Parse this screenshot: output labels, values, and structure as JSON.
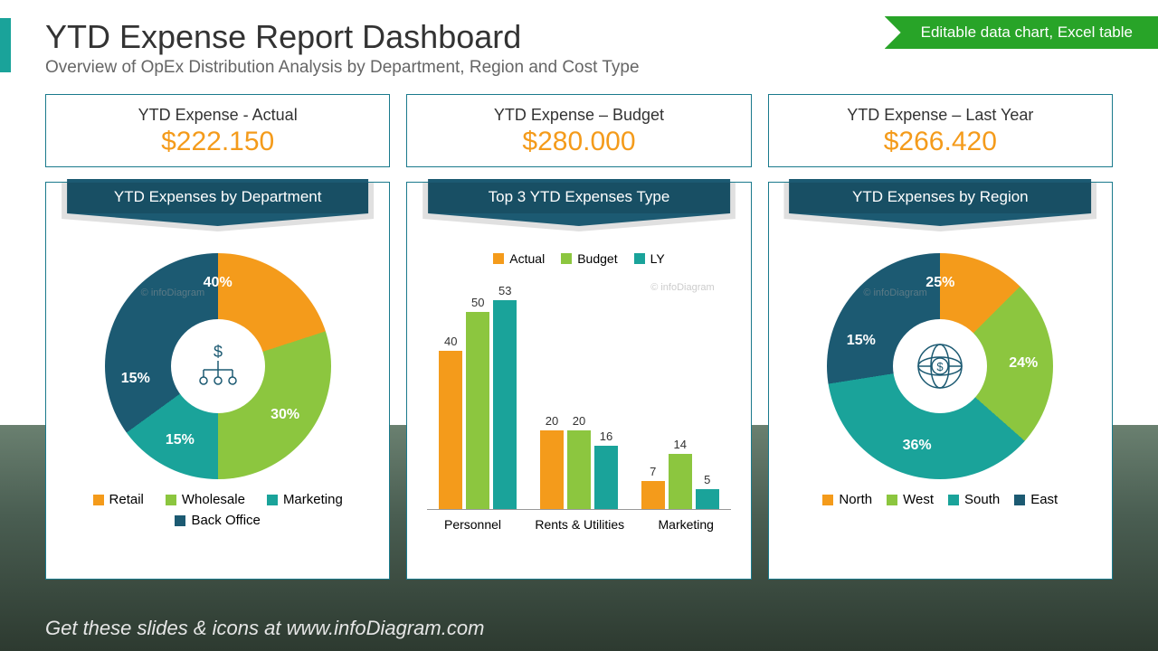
{
  "header": {
    "title": "YTD Expense Report Dashboard",
    "subtitle": "Overview of OpEx Distribution Analysis by Department, Region and Cost Type",
    "ribbon": "Editable data chart, Excel table"
  },
  "colors": {
    "orange": "#f49b1b",
    "green": "#8cc63f",
    "teal": "#1aa39a",
    "darkblue": "#1c5a72",
    "panel_border": "#1a7a8c",
    "ribbon": "#28a428"
  },
  "kpis": [
    {
      "label": "YTD Expense - Actual",
      "value": "$222.150"
    },
    {
      "label": "YTD Expense – Budget",
      "value": "$280.000"
    },
    {
      "label": "YTD Expense – Last Year",
      "value": "$266.420"
    }
  ],
  "panel1": {
    "title": "YTD Expenses by Department",
    "type": "donut",
    "segments": [
      {
        "label": "Retail",
        "value": 40,
        "color": "#f49b1b"
      },
      {
        "label": "Wholesale",
        "value": 30,
        "color": "#8cc63f"
      },
      {
        "label": "Marketing",
        "value": 15,
        "color": "#1aa39a"
      },
      {
        "label": "Back Office",
        "value": 15,
        "color": "#1c5a72"
      }
    ],
    "center_icon": "org-money",
    "watermark": "© infoDiagram"
  },
  "panel2": {
    "title": "Top 3 YTD Expenses Type",
    "type": "grouped-bar",
    "series": [
      {
        "name": "Actual",
        "color": "#f49b1b"
      },
      {
        "name": "Budget",
        "color": "#8cc63f"
      },
      {
        "name": "LY",
        "color": "#1aa39a"
      }
    ],
    "categories": [
      "Personnel",
      "Rents & Utilities",
      "Marketing"
    ],
    "values": [
      [
        40,
        50,
        53
      ],
      [
        20,
        20,
        16
      ],
      [
        7,
        14,
        5
      ]
    ],
    "ymax": 55,
    "watermark": "© infoDiagram"
  },
  "panel3": {
    "title": "YTD Expenses by Region",
    "type": "donut",
    "segments": [
      {
        "label": "North",
        "value": 25,
        "color": "#f49b1b"
      },
      {
        "label": "West",
        "value": 24,
        "color": "#8cc63f"
      },
      {
        "label": "South",
        "value": 36,
        "color": "#1aa39a"
      },
      {
        "label": "East",
        "value": 15,
        "color": "#1c5a72"
      }
    ],
    "center_icon": "globe-money",
    "watermark": "© infoDiagram"
  },
  "footer": "Get these slides & icons at www.infoDiagram.com"
}
